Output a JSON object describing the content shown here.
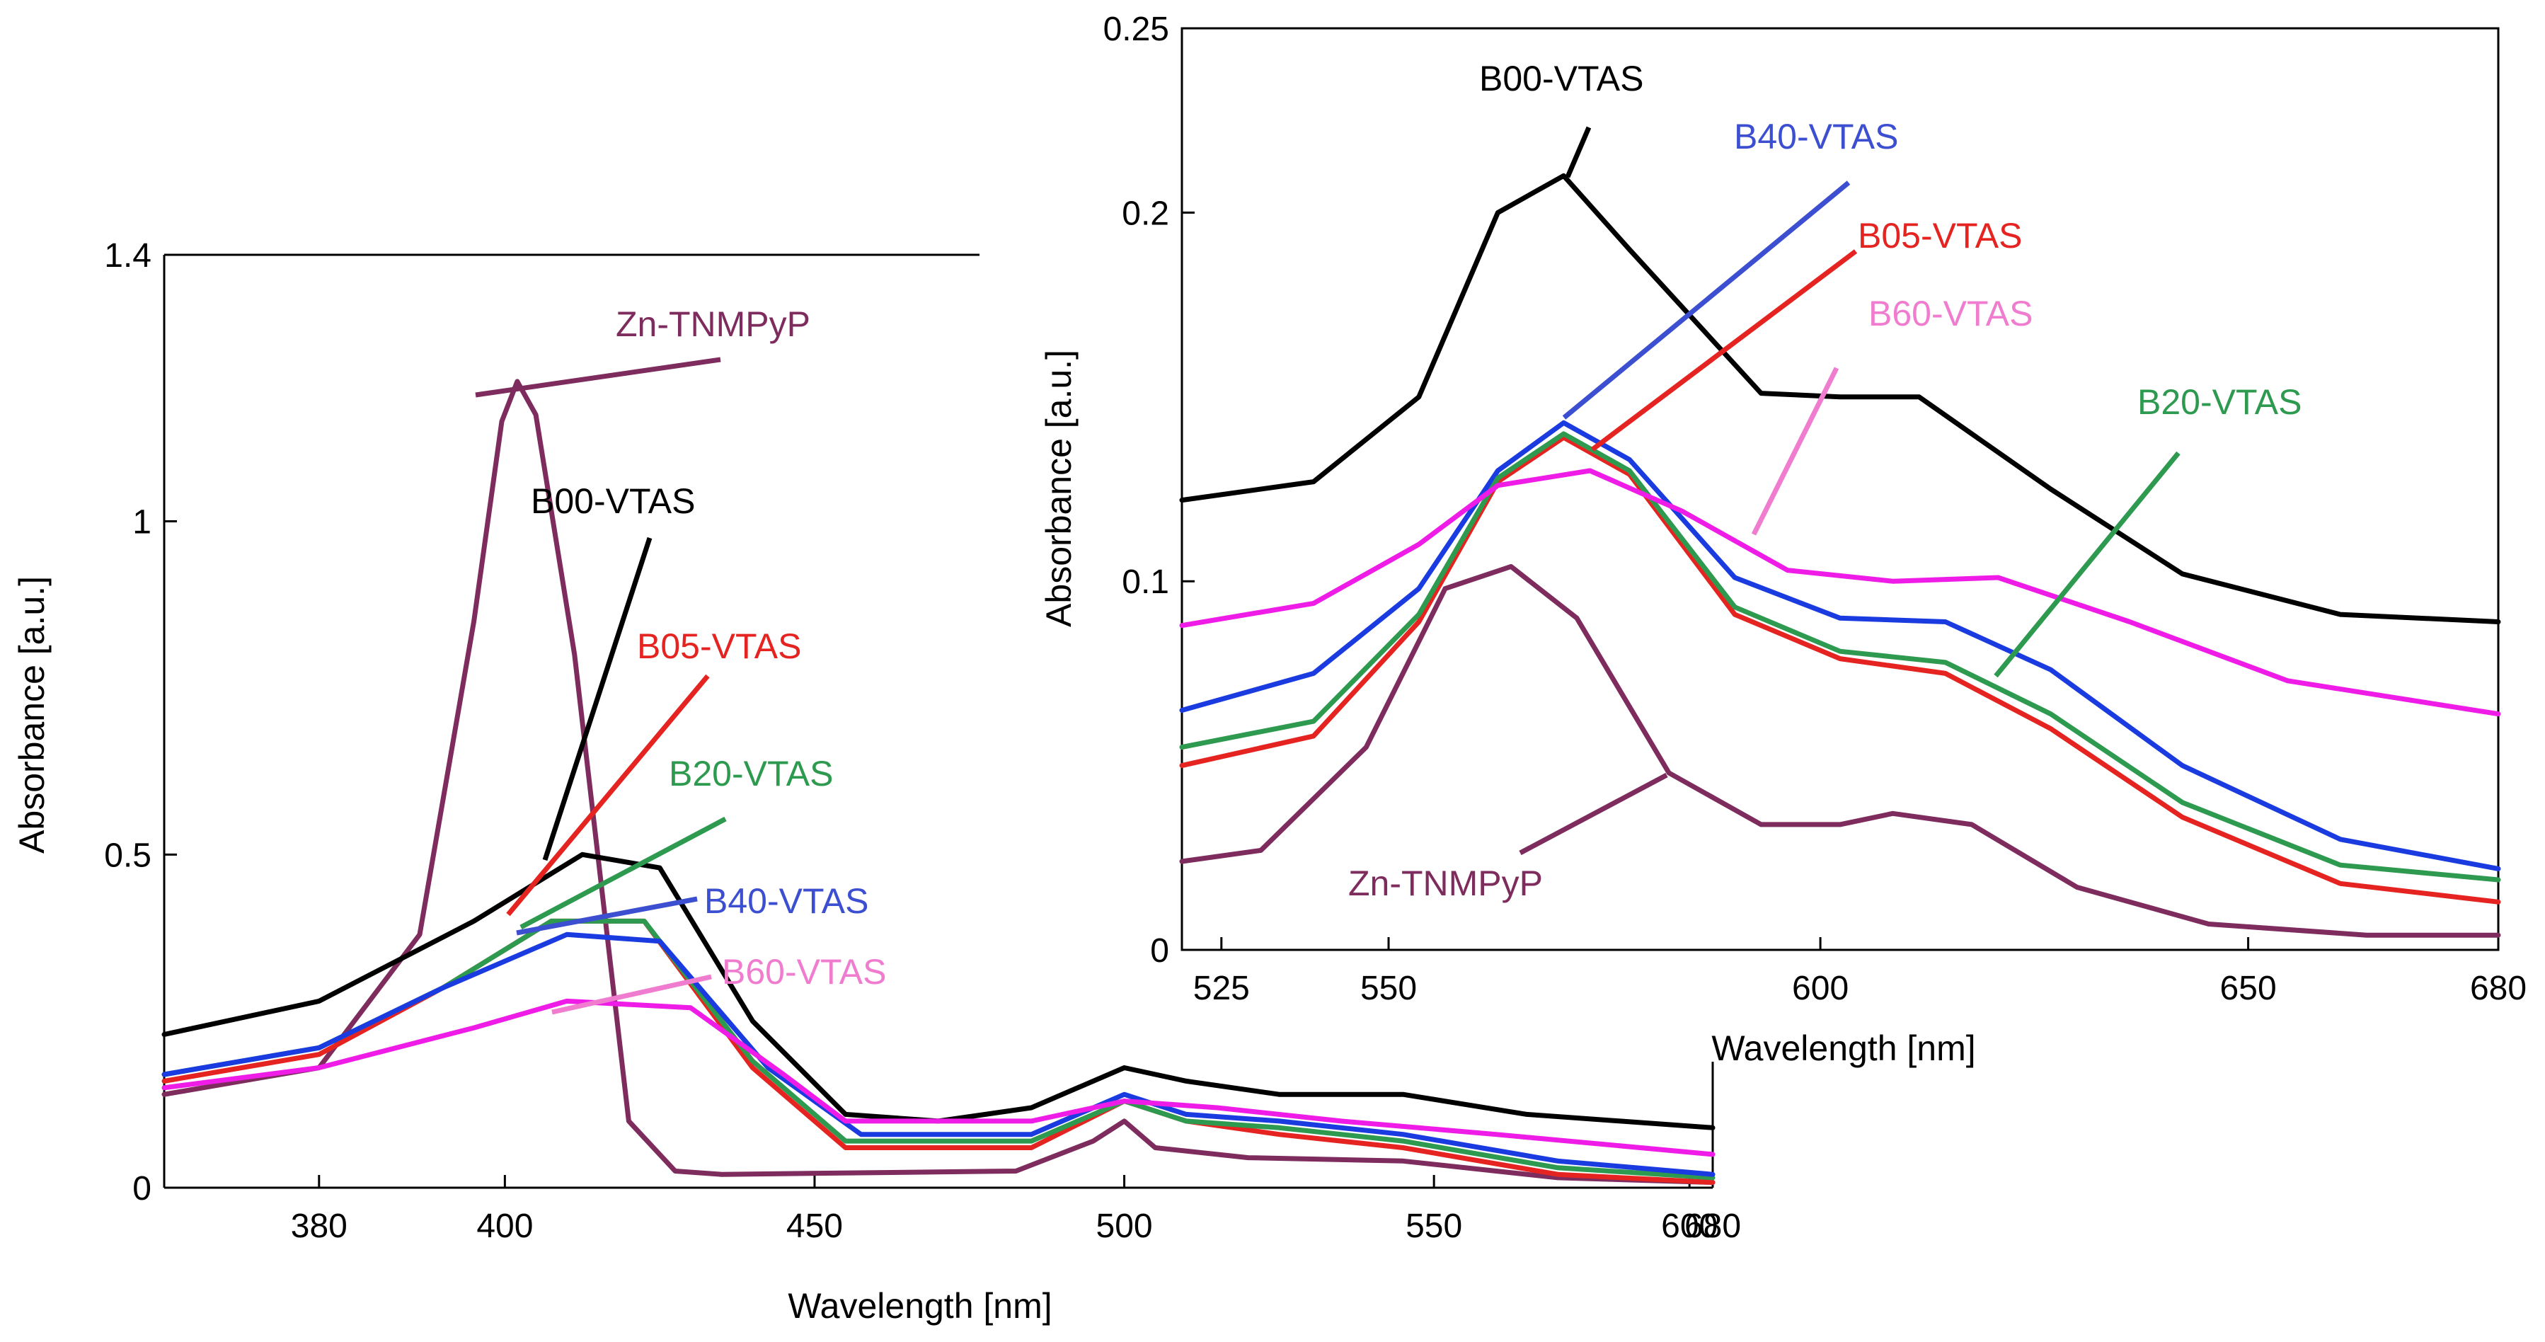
{
  "chart_data": [
    {
      "type": "line",
      "panel": "main",
      "xlabel": "Wavelength [nm]",
      "ylabel": "Absorbance [a.u.]",
      "x_ticks": [
        "380",
        "400",
        "450",
        "500",
        "550",
        "600",
        "680"
      ],
      "y_ticks": [
        "0",
        "0.5",
        "1",
        "1.4"
      ],
      "ylim": [
        0,
        1.4
      ],
      "series": [
        {
          "name": "Zn-TNMPyP",
          "color": "#7e2b5e",
          "points": [
            [
              0,
              0.14
            ],
            [
              0.1,
              0.18
            ],
            [
              0.165,
              0.38
            ],
            [
              0.2,
              0.85
            ],
            [
              0.218,
              1.15
            ],
            [
              0.228,
              1.21
            ],
            [
              0.24,
              1.16
            ],
            [
              0.265,
              0.8
            ],
            [
              0.29,
              0.3
            ],
            [
              0.3,
              0.1
            ],
            [
              0.33,
              0.025
            ],
            [
              0.36,
              0.02
            ],
            [
              0.55,
              0.025
            ],
            [
              0.6,
              0.07
            ],
            [
              0.62,
              0.1
            ],
            [
              0.64,
              0.06
            ],
            [
              0.7,
              0.045
            ],
            [
              0.8,
              0.04
            ],
            [
              0.9,
              0.015
            ],
            [
              1.0,
              0.008
            ]
          ]
        },
        {
          "name": "B00-VTAS",
          "color": "#000000",
          "points": [
            [
              0,
              0.23
            ],
            [
              0.1,
              0.28
            ],
            [
              0.2,
              0.4
            ],
            [
              0.27,
              0.5
            ],
            [
              0.32,
              0.48
            ],
            [
              0.38,
              0.25
            ],
            [
              0.44,
              0.11
            ],
            [
              0.5,
              0.1
            ],
            [
              0.56,
              0.12
            ],
            [
              0.62,
              0.18
            ],
            [
              0.66,
              0.16
            ],
            [
              0.72,
              0.14
            ],
            [
              0.8,
              0.14
            ],
            [
              0.88,
              0.11
            ],
            [
              1.0,
              0.09
            ]
          ]
        },
        {
          "name": "B05-VTAS",
          "color": "#e52421",
          "points": [
            [
              0,
              0.16
            ],
            [
              0.1,
              0.2
            ],
            [
              0.18,
              0.3
            ],
            [
              0.25,
              0.4
            ],
            [
              0.31,
              0.4
            ],
            [
              0.38,
              0.18
            ],
            [
              0.44,
              0.06
            ],
            [
              0.56,
              0.06
            ],
            [
              0.62,
              0.13
            ],
            [
              0.66,
              0.1
            ],
            [
              0.72,
              0.08
            ],
            [
              0.8,
              0.06
            ],
            [
              0.9,
              0.02
            ],
            [
              1.0,
              0.008
            ]
          ]
        },
        {
          "name": "B20-VTAS",
          "color": "#2e9a4f",
          "points": [
            [
              0,
              0.17
            ],
            [
              0.1,
              0.21
            ],
            [
              0.18,
              0.3
            ],
            [
              0.25,
              0.4
            ],
            [
              0.31,
              0.4
            ],
            [
              0.38,
              0.19
            ],
            [
              0.44,
              0.07
            ],
            [
              0.56,
              0.07
            ],
            [
              0.62,
              0.13
            ],
            [
              0.66,
              0.1
            ],
            [
              0.72,
              0.09
            ],
            [
              0.8,
              0.07
            ],
            [
              0.9,
              0.03
            ],
            [
              1.0,
              0.015
            ]
          ]
        },
        {
          "name": "B40-VTAS",
          "color": "#1a3be0",
          "points": [
            [
              0,
              0.17
            ],
            [
              0.1,
              0.21
            ],
            [
              0.18,
              0.3
            ],
            [
              0.26,
              0.38
            ],
            [
              0.32,
              0.37
            ],
            [
              0.39,
              0.18
            ],
            [
              0.45,
              0.08
            ],
            [
              0.56,
              0.08
            ],
            [
              0.62,
              0.14
            ],
            [
              0.66,
              0.11
            ],
            [
              0.72,
              0.1
            ],
            [
              0.8,
              0.08
            ],
            [
              0.9,
              0.04
            ],
            [
              1.0,
              0.02
            ]
          ]
        },
        {
          "name": "B60-VTAS",
          "color": "#ee1ce6",
          "points": [
            [
              0,
              0.15
            ],
            [
              0.1,
              0.18
            ],
            [
              0.2,
              0.24
            ],
            [
              0.26,
              0.28
            ],
            [
              0.34,
              0.27
            ],
            [
              0.4,
              0.17
            ],
            [
              0.44,
              0.1
            ],
            [
              0.56,
              0.1
            ],
            [
              0.62,
              0.13
            ],
            [
              0.68,
              0.12
            ],
            [
              0.76,
              0.1
            ],
            [
              0.86,
              0.08
            ],
            [
              1.0,
              0.05
            ]
          ]
        }
      ],
      "annotations": [
        {
          "text": "Zn-TNMPyP",
          "color": "#7e2b5e"
        },
        {
          "text": "B00-VTAS",
          "color": "#000000"
        },
        {
          "text": "B05-VTAS",
          "color": "#e52421"
        },
        {
          "text": "B20-VTAS",
          "color": "#2e9a4f"
        },
        {
          "text": "B40-VTAS",
          "color": "#3b4fd0"
        },
        {
          "text": "B60-VTAS",
          "color": "#f07ccf"
        }
      ]
    },
    {
      "type": "line",
      "panel": "inset",
      "xlabel": "Wavelength [nm]",
      "ylabel": "Absorbance [a.u.]",
      "x_ticks": [
        "525",
        "550",
        "600",
        "650",
        "680"
      ],
      "y_ticks": [
        "0",
        "0.1",
        "0.2",
        "0.25"
      ],
      "ylim": [
        0,
        0.25
      ],
      "series": [
        {
          "name": "B00-VTAS",
          "color": "#000000",
          "points": [
            [
              0,
              0.122
            ],
            [
              0.1,
              0.127
            ],
            [
              0.18,
              0.15
            ],
            [
              0.24,
              0.2
            ],
            [
              0.29,
              0.21
            ],
            [
              0.34,
              0.19
            ],
            [
              0.44,
              0.151
            ],
            [
              0.5,
              0.15
            ],
            [
              0.56,
              0.15
            ],
            [
              0.66,
              0.125
            ],
            [
              0.76,
              0.102
            ],
            [
              0.88,
              0.091
            ],
            [
              1.0,
              0.089
            ]
          ]
        },
        {
          "name": "B40-VTAS",
          "color": "#1a3be0",
          "points": [
            [
              0,
              0.065
            ],
            [
              0.1,
              0.075
            ],
            [
              0.18,
              0.098
            ],
            [
              0.24,
              0.13
            ],
            [
              0.29,
              0.143
            ],
            [
              0.34,
              0.133
            ],
            [
              0.42,
              0.101
            ],
            [
              0.5,
              0.09
            ],
            [
              0.58,
              0.089
            ],
            [
              0.66,
              0.076
            ],
            [
              0.76,
              0.05
            ],
            [
              0.88,
              0.03
            ],
            [
              1.0,
              0.022
            ]
          ]
        },
        {
          "name": "B05-VTAS",
          "color": "#e52421",
          "points": [
            [
              0,
              0.05
            ],
            [
              0.1,
              0.058
            ],
            [
              0.18,
              0.089
            ],
            [
              0.24,
              0.127
            ],
            [
              0.29,
              0.139
            ],
            [
              0.34,
              0.129
            ],
            [
              0.42,
              0.091
            ],
            [
              0.5,
              0.079
            ],
            [
              0.58,
              0.075
            ],
            [
              0.66,
              0.06
            ],
            [
              0.76,
              0.036
            ],
            [
              0.88,
              0.018
            ],
            [
              1.0,
              0.013
            ]
          ]
        },
        {
          "name": "B20-VTAS",
          "color": "#2e9a4f",
          "points": [
            [
              0,
              0.055
            ],
            [
              0.1,
              0.062
            ],
            [
              0.18,
              0.091
            ],
            [
              0.24,
              0.128
            ],
            [
              0.29,
              0.14
            ],
            [
              0.34,
              0.13
            ],
            [
              0.42,
              0.093
            ],
            [
              0.5,
              0.081
            ],
            [
              0.58,
              0.078
            ],
            [
              0.66,
              0.064
            ],
            [
              0.76,
              0.04
            ],
            [
              0.88,
              0.023
            ],
            [
              1.0,
              0.019
            ]
          ]
        },
        {
          "name": "B60-VTAS",
          "color": "#ee1ce6",
          "points": [
            [
              0,
              0.088
            ],
            [
              0.1,
              0.094
            ],
            [
              0.18,
              0.11
            ],
            [
              0.24,
              0.126
            ],
            [
              0.31,
              0.13
            ],
            [
              0.38,
              0.119
            ],
            [
              0.46,
              0.103
            ],
            [
              0.54,
              0.1
            ],
            [
              0.62,
              0.101
            ],
            [
              0.72,
              0.089
            ],
            [
              0.84,
              0.073
            ],
            [
              1.0,
              0.064
            ]
          ]
        },
        {
          "name": "Zn-TNMPyP",
          "color": "#7e2b5e",
          "points": [
            [
              0,
              0.024
            ],
            [
              0.06,
              0.027
            ],
            [
              0.14,
              0.055
            ],
            [
              0.2,
              0.098
            ],
            [
              0.25,
              0.104
            ],
            [
              0.3,
              0.09
            ],
            [
              0.37,
              0.048
            ],
            [
              0.44,
              0.034
            ],
            [
              0.5,
              0.034
            ],
            [
              0.54,
              0.037
            ],
            [
              0.6,
              0.034
            ],
            [
              0.68,
              0.017
            ],
            [
              0.78,
              0.007
            ],
            [
              0.9,
              0.004
            ],
            [
              1.0,
              0.004
            ]
          ]
        }
      ],
      "annotations": [
        {
          "text": "B00-VTAS",
          "color": "#000000"
        },
        {
          "text": "B40-VTAS",
          "color": "#3b4fd0"
        },
        {
          "text": "B05-VTAS",
          "color": "#e52421"
        },
        {
          "text": "B60-VTAS",
          "color": "#f07ccf"
        },
        {
          "text": "B20-VTAS",
          "color": "#2e9a4f"
        },
        {
          "text": "Zn-TNMPyP",
          "color": "#7e2b5e"
        }
      ]
    }
  ]
}
